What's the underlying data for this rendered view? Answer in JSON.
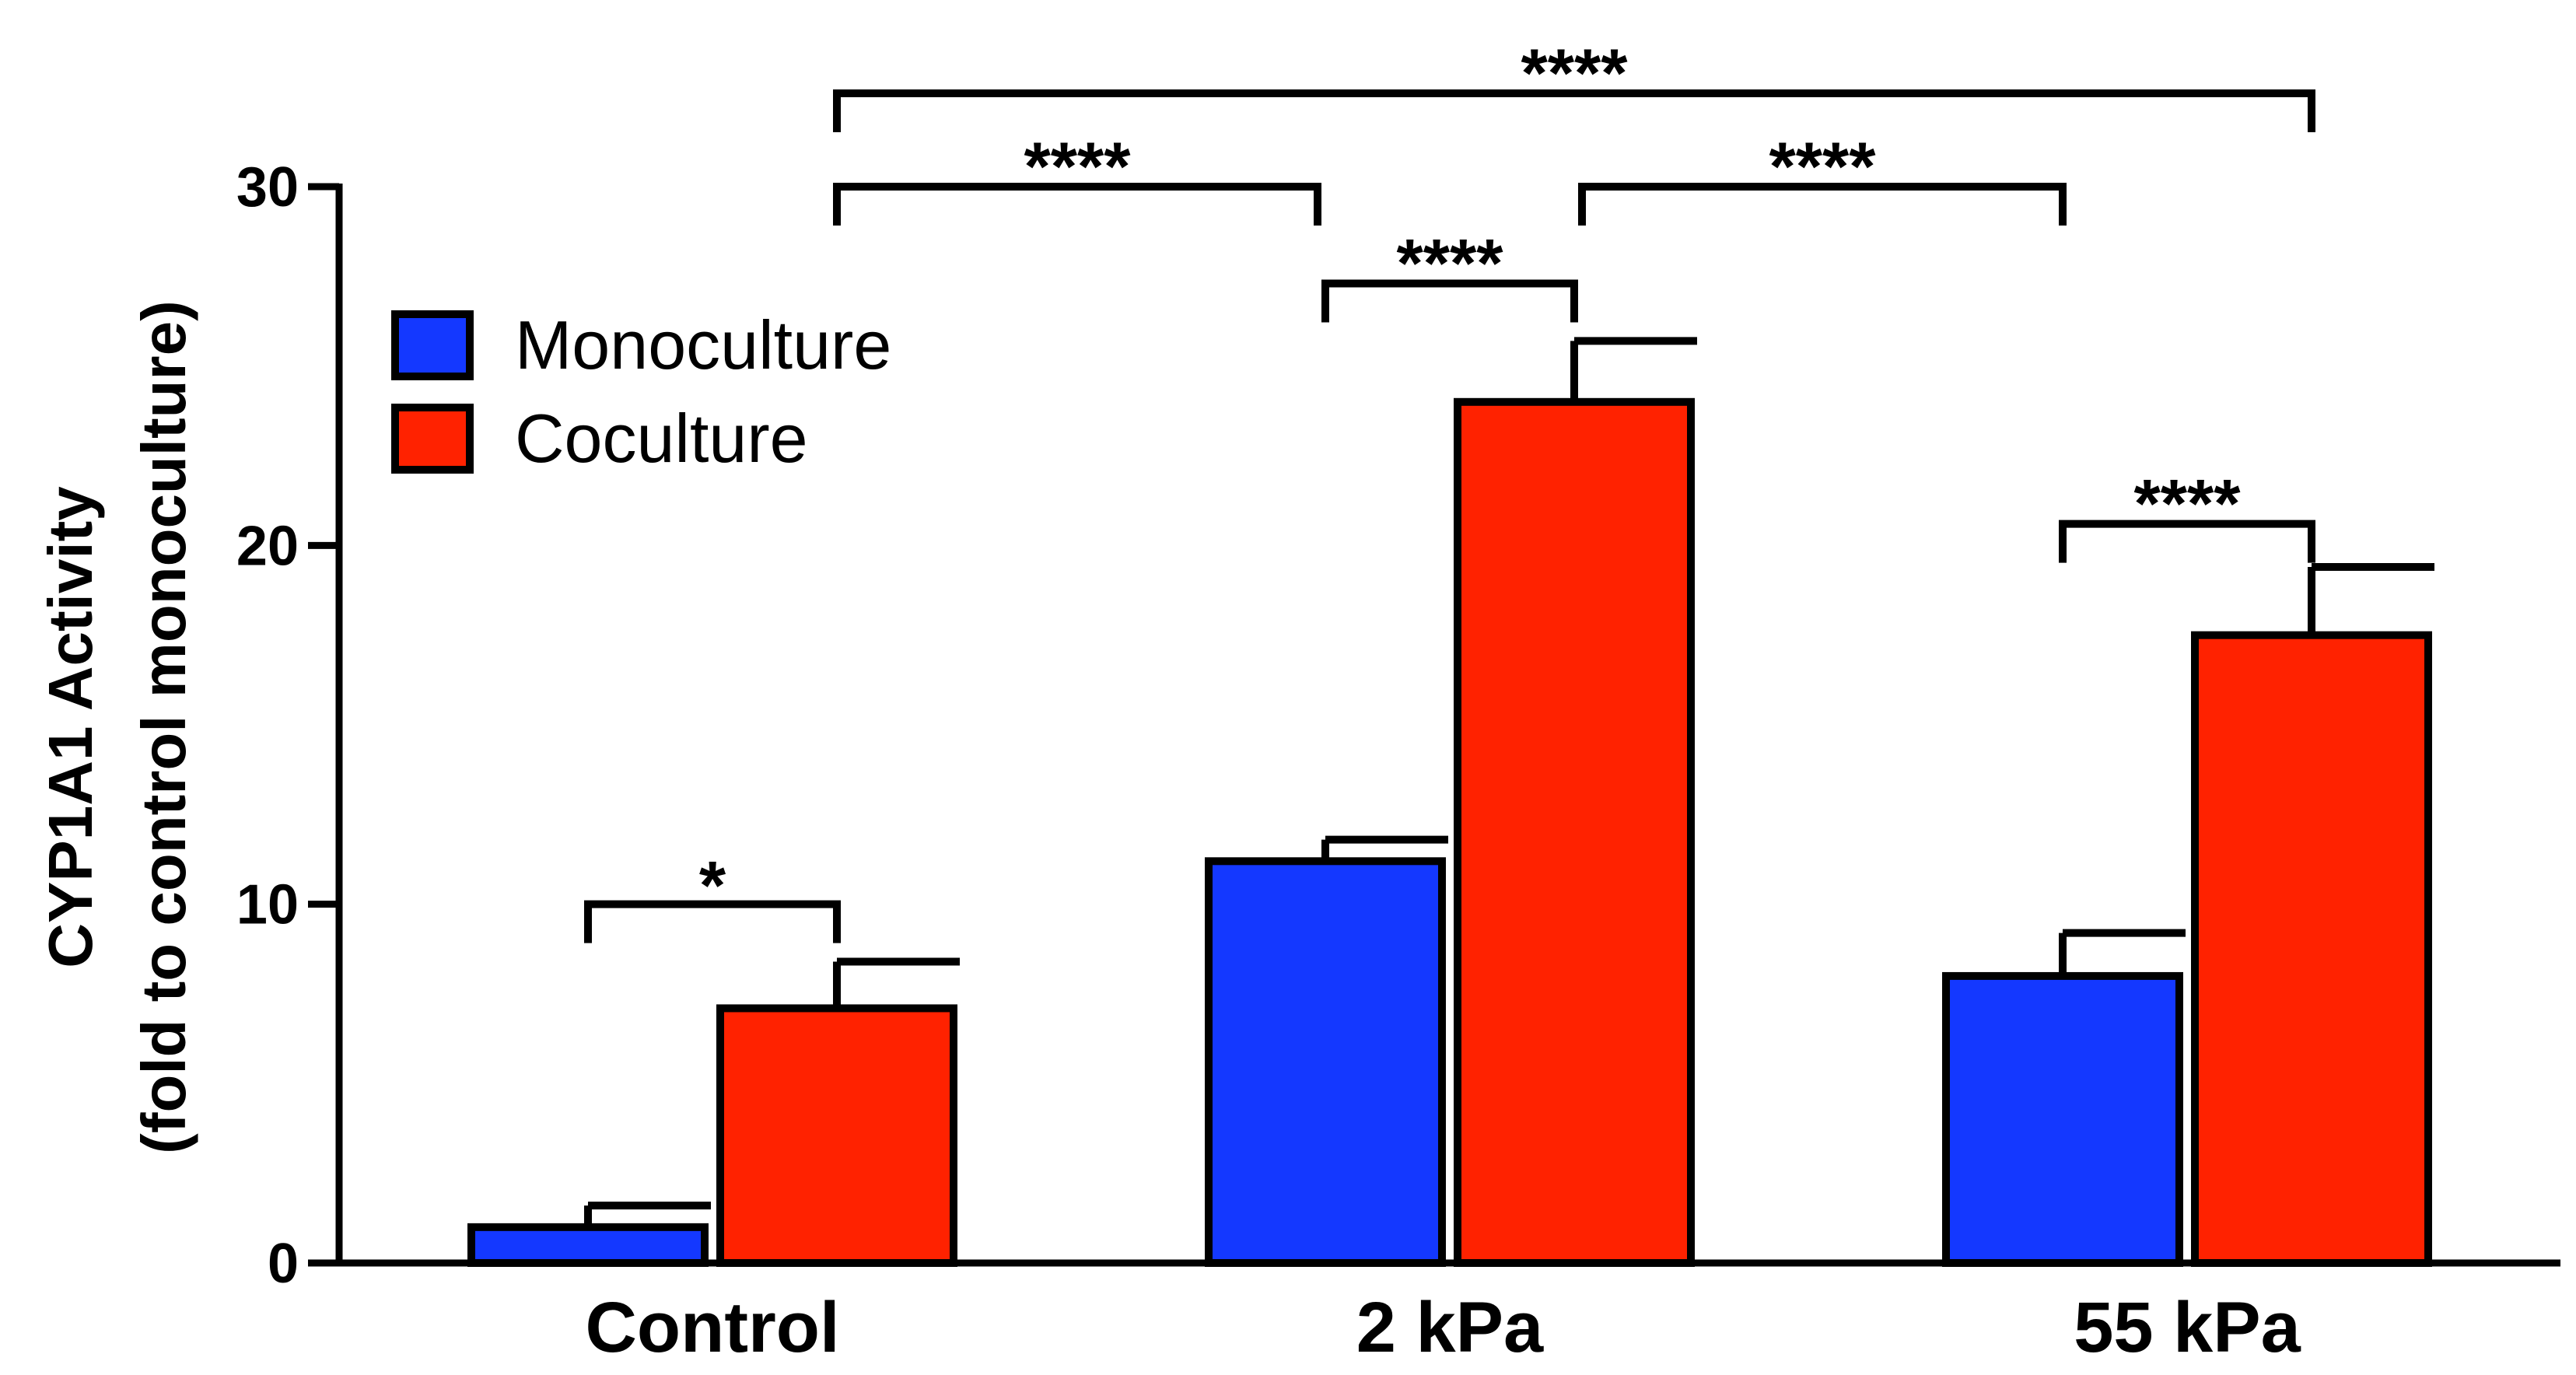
{
  "chart_data": {
    "type": "bar",
    "title": "",
    "xlabel": "",
    "ylabel": [
      "CYP1A1 Activity",
      "(fold to control monoculture)"
    ],
    "ylim": [
      0,
      30
    ],
    "yticks": [
      0,
      10,
      20,
      30
    ],
    "categories": [
      "Control",
      "2 kPa",
      "55 kPa"
    ],
    "series": [
      {
        "name": "Monoculture",
        "color": "#1438ff",
        "values": [
          1.0,
          11.2,
          8.0
        ],
        "errors": [
          0.6,
          0.6,
          1.2
        ]
      },
      {
        "name": "Coculture",
        "color": "#ff2200",
        "values": [
          7.1,
          24.0,
          17.5
        ],
        "errors": [
          1.3,
          1.7,
          1.9
        ]
      }
    ],
    "legend": {
      "position": "top-left",
      "entries": [
        "Monoculture",
        "Coculture"
      ]
    },
    "significance": [
      {
        "label": "*",
        "from": {
          "category": 0,
          "series": 0
        },
        "to": {
          "category": 0,
          "series": 1
        },
        "level": 10.0
      },
      {
        "label": "****",
        "from": {
          "category": 1,
          "series": 0
        },
        "to": {
          "category": 1,
          "series": 1
        },
        "level": 27.3
      },
      {
        "label": "****",
        "from": {
          "category": 2,
          "series": 0
        },
        "to": {
          "category": 2,
          "series": 1
        },
        "level": 20.6
      },
      {
        "label": "****",
        "from": {
          "category": 0,
          "series": 1
        },
        "to": {
          "category": 1,
          "series": 0
        },
        "level": 30.0
      },
      {
        "label": "****",
        "from": {
          "category": 1,
          "series": 1
        },
        "to": {
          "category": 2,
          "series": 0
        },
        "level": 30.0
      },
      {
        "label": "****",
        "from": {
          "category": 0,
          "series": 1
        },
        "to": {
          "category": 2,
          "series": 1
        },
        "level": 32.6
      }
    ]
  }
}
